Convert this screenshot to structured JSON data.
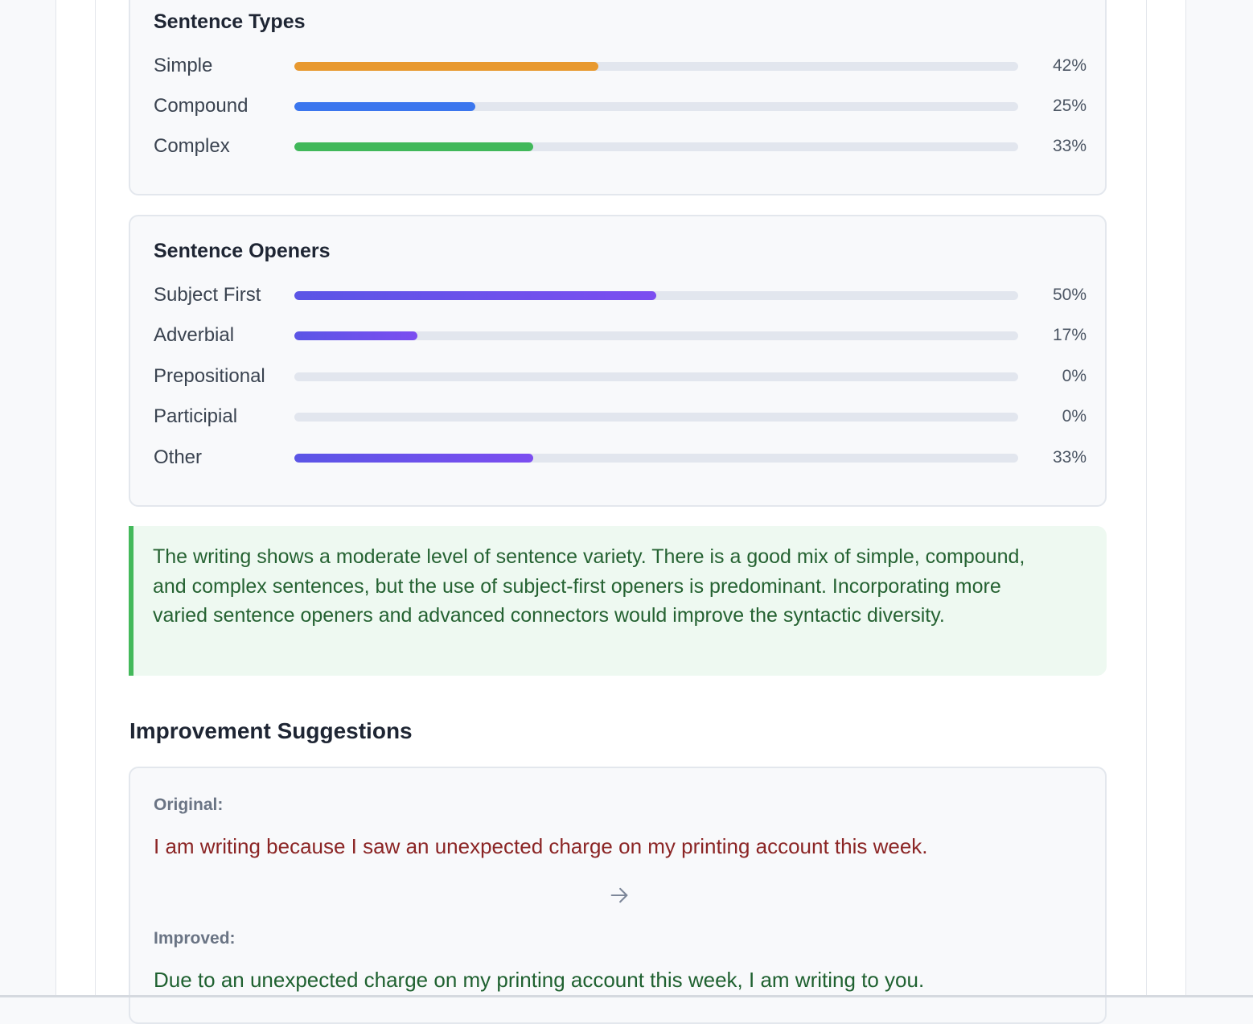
{
  "sentence_types": {
    "title": "Sentence Types",
    "rows": [
      {
        "label": "Simple",
        "percent_text": "42%",
        "value": 42,
        "color": "#e8992f"
      },
      {
        "label": "Compound",
        "percent_text": "25%",
        "value": 25,
        "color": "#3b76ee"
      },
      {
        "label": "Complex",
        "percent_text": "33%",
        "value": 33,
        "color": "#41b85a"
      }
    ]
  },
  "sentence_openers": {
    "title": "Sentence Openers",
    "rows": [
      {
        "label": "Subject First",
        "percent_text": "50%",
        "value": 50
      },
      {
        "label": "Adverbial",
        "percent_text": "17%",
        "value": 17
      },
      {
        "label": "Prepositional",
        "percent_text": "0%",
        "value": 0
      },
      {
        "label": "Participial",
        "percent_text": "0%",
        "value": 0
      },
      {
        "label": "Other",
        "percent_text": "33%",
        "value": 33
      }
    ],
    "color_start": "#5b55e6",
    "color_end": "#7c4ef0"
  },
  "summary": {
    "text": "The writing shows a moderate level of sentence variety. There is a good mix of simple, compound, and complex sentences, but the use of subject-first openers is predominant. Incorporating more varied sentence openers and advanced connectors would improve the syntactic diversity.",
    "accent_color": "#43b95b"
  },
  "suggestions": {
    "heading": "Improvement Suggestions",
    "items": [
      {
        "original_label": "Original:",
        "original": "I am writing because I saw an unexpected charge on my printing account this week.",
        "arrow_icon": "arrow-right-icon",
        "improved_label": "Improved:",
        "improved": "Due to an unexpected charge on my printing account this week, I am writing to you."
      }
    ]
  }
}
